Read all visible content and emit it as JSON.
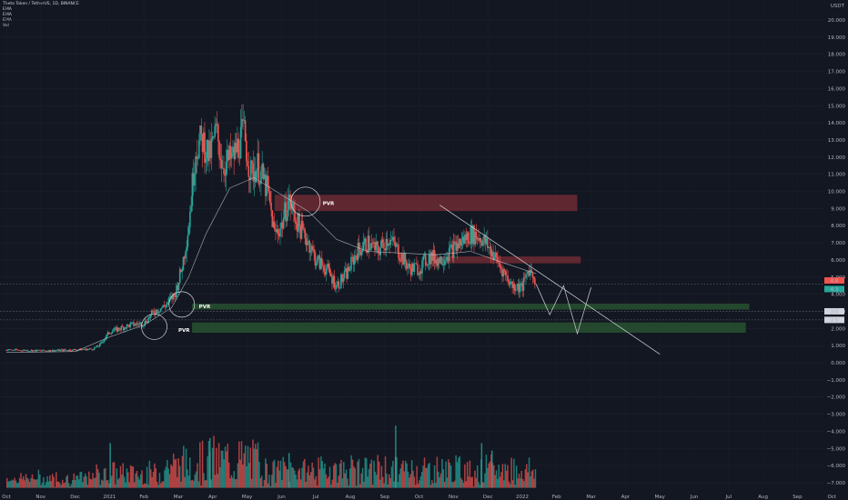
{
  "header": {
    "title": "Theta Token / TetherUS, 1D, BINANCE",
    "indicators": [
      "EMA",
      "EMA",
      "EMA",
      "Vol"
    ]
  },
  "chart_data": {
    "type": "candlestick",
    "quote_currency": "USDT",
    "y_ticks": [
      20,
      19,
      18,
      17,
      16,
      15,
      14,
      13,
      12,
      11,
      10,
      9,
      8,
      7,
      6,
      5,
      4,
      3,
      2,
      1,
      0,
      -1,
      -2,
      -3,
      -4,
      -5,
      -6,
      -7
    ],
    "y_tick_labels": [
      "20.000",
      "19.000",
      "18.000",
      "17.000",
      "16.000",
      "15.000",
      "14.000",
      "13.000",
      "12.000",
      "11.000",
      "10.000",
      "9.000",
      "8.000",
      "7.000",
      "6.000",
      "5.000",
      "4.000",
      "3.000",
      "2.000",
      "1.000",
      "0.000",
      "−1.000",
      "−2.000",
      "−3.000",
      "−4.000",
      "−5.000",
      "−6.000",
      "−7.000"
    ],
    "x_tick_labels": [
      "Oct",
      "Nov",
      "Dec",
      "2021",
      "Feb",
      "Mar",
      "Apr",
      "May",
      "Jun",
      "Jul",
      "Aug",
      "Sep",
      "Oct",
      "Nov",
      "Dec",
      "2022",
      "Feb",
      "Mar",
      "Apr",
      "May",
      "Jun",
      "Jul",
      "Aug",
      "Sep",
      "Oct"
    ],
    "price_path": [
      [
        0,
        0.75
      ],
      [
        1,
        0.7
      ],
      [
        2,
        0.75
      ],
      [
        2.5,
        0.8
      ],
      [
        2.7,
        1.0
      ],
      [
        3,
        1.8
      ],
      [
        3.3,
        2.0
      ],
      [
        3.6,
        2.2
      ],
      [
        4,
        2.3
      ],
      [
        4.3,
        3.0
      ],
      [
        4.6,
        3.3
      ],
      [
        4.9,
        4.0
      ],
      [
        5.1,
        5.5
      ],
      [
        5.3,
        8.0
      ],
      [
        5.5,
        12.5
      ],
      [
        5.7,
        13.0
      ],
      [
        5.9,
        12.0
      ],
      [
        6.1,
        13.5
      ],
      [
        6.3,
        11.5
      ],
      [
        6.6,
        12.0
      ],
      [
        6.9,
        13.5
      ],
      [
        7.1,
        11.0
      ],
      [
        7.3,
        11.5
      ],
      [
        7.6,
        10.0
      ],
      [
        7.8,
        7.5
      ],
      [
        8.0,
        8.0
      ],
      [
        8.2,
        9.5
      ],
      [
        8.5,
        8.0
      ],
      [
        8.8,
        7.0
      ],
      [
        9.0,
        6.0
      ],
      [
        9.3,
        5.5
      ],
      [
        9.6,
        4.5
      ],
      [
        9.9,
        5.2
      ],
      [
        10.2,
        6.5
      ],
      [
        10.5,
        7.0
      ],
      [
        10.8,
        6.5
      ],
      [
        11.1,
        7.3
      ],
      [
        11.4,
        6.5
      ],
      [
        11.7,
        5.5
      ],
      [
        12.0,
        5.5
      ],
      [
        12.3,
        6.2
      ],
      [
        12.6,
        6.0
      ],
      [
        12.9,
        6.5
      ],
      [
        13.2,
        7.0
      ],
      [
        13.5,
        7.5
      ],
      [
        13.8,
        7.3
      ],
      [
        14.1,
        6.5
      ],
      [
        14.4,
        5.5
      ],
      [
        14.7,
        4.5
      ],
      [
        15.0,
        4.4
      ],
      [
        15.2,
        5.5
      ],
      [
        15.4,
        4.8
      ]
    ],
    "zones": [
      {
        "kind": "resistance",
        "from": 8.85,
        "to": 9.8,
        "x_start": 7.8,
        "x_end": 16.6
      },
      {
        "kind": "resistance",
        "from": 5.8,
        "to": 6.2,
        "x_start": 12.5,
        "x_end": 16.7
      },
      {
        "kind": "support",
        "from": 3.1,
        "to": 3.45,
        "x_start": 5.4,
        "x_end": 21.6
      },
      {
        "kind": "support",
        "from": 1.75,
        "to": 2.35,
        "x_start": 5.4,
        "x_end": 21.5
      }
    ],
    "zone_labels": [
      "PVR",
      "PVR",
      "PVR"
    ],
    "price_labels": [
      "4.8",
      "4.3",
      "3.0",
      "2.5"
    ],
    "ema_path": [
      [
        0,
        0.6
      ],
      [
        2,
        0.65
      ],
      [
        3,
        1.5
      ],
      [
        4,
        2.2
      ],
      [
        4.8,
        3.2
      ],
      [
        5.3,
        5
      ],
      [
        5.8,
        7.5
      ],
      [
        6.5,
        10.2
      ],
      [
        7.2,
        10.8
      ],
      [
        8,
        9.8
      ],
      [
        8.8,
        8.8
      ],
      [
        9.6,
        7.2
      ],
      [
        10.5,
        6.5
      ],
      [
        11.5,
        6.4
      ],
      [
        12.5,
        6.3
      ],
      [
        13.5,
        6.5
      ],
      [
        14.5,
        5.8
      ],
      [
        15.4,
        5.2
      ]
    ],
    "trendline": [
      [
        12.6,
        9.2
      ],
      [
        19.0,
        0.5
      ]
    ],
    "projection_path": [
      [
        15.4,
        4.6
      ],
      [
        15.8,
        2.8
      ],
      [
        16.2,
        4.5
      ],
      [
        16.6,
        1.7
      ],
      [
        17.0,
        4.4
      ]
    ],
    "volume": {
      "baseline": -7.3,
      "max_height": 5.0,
      "bars_hint": "daily volume histogram"
    }
  }
}
